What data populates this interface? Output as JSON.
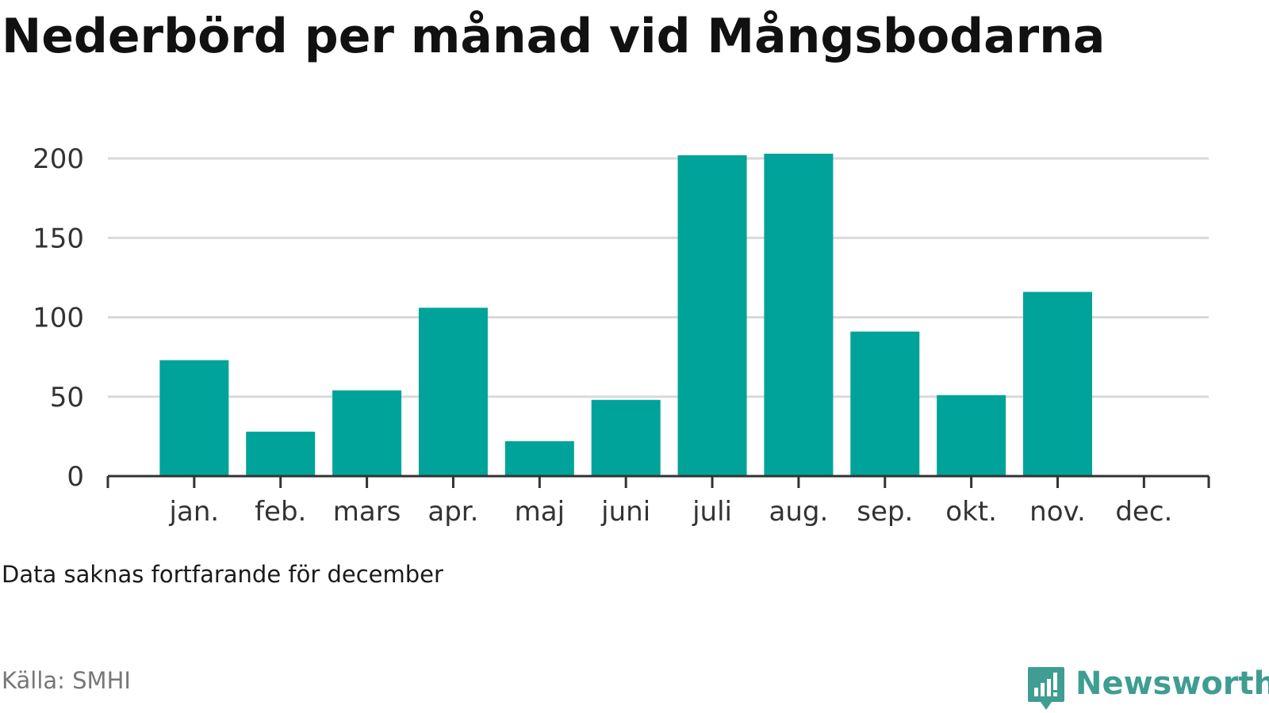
{
  "title": "Nederbörd per månad vid Mångsbodarna",
  "note": "Data saknas fortfarande för december",
  "source": "Källa: SMHI",
  "brand": {
    "name": "Newsworthy",
    "icon": "newsworthy-logo-icon",
    "color": "#3f9d92"
  },
  "colors": {
    "bar": "#00a399",
    "grid": "#d9d9d9",
    "axis": "#333333"
  },
  "chart_data": {
    "type": "bar",
    "categories": [
      "jan.",
      "feb.",
      "mars",
      "apr.",
      "maj",
      "juni",
      "juli",
      "aug.",
      "sep.",
      "okt.",
      "nov.",
      "dec."
    ],
    "values": [
      73,
      28,
      54,
      106,
      22,
      48,
      202,
      203,
      91,
      51,
      116,
      null
    ],
    "title": "Nederbörd per månad vid Mångsbodarna",
    "xlabel": "",
    "ylabel": "",
    "ylim": [
      0,
      200
    ],
    "yticks": [
      0,
      50,
      100,
      150,
      200
    ],
    "grid": true,
    "legend": "none"
  }
}
